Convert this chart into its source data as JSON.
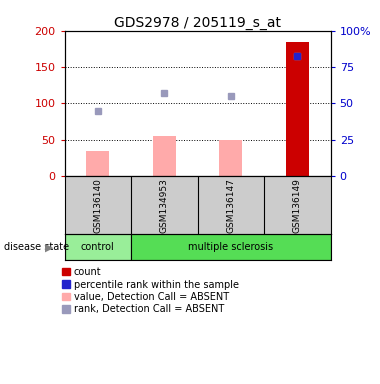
{
  "title": "GDS2978 / 205119_s_at",
  "samples": [
    "GSM136140",
    "GSM134953",
    "GSM136147",
    "GSM136149"
  ],
  "disease_state": [
    "control",
    "multiple sclerosis",
    "multiple sclerosis",
    "multiple sclerosis"
  ],
  "pink_bar_values": [
    35,
    55,
    50,
    185
  ],
  "red_bar_value": 185,
  "red_bar_index": 3,
  "blue_sq_values": [
    90,
    115,
    110,
    165
  ],
  "percentile_rank_value": 165,
  "percentile_rank_index": 3,
  "left_ylim": [
    0,
    200
  ],
  "right_ylim": [
    0,
    100
  ],
  "left_yticks": [
    0,
    50,
    100,
    150,
    200
  ],
  "right_yticks": [
    0,
    25,
    50,
    75,
    100
  ],
  "right_yticklabels": [
    "0",
    "25",
    "50",
    "75",
    "100%"
  ],
  "colors": {
    "red_bar": "#cc0000",
    "pink_bar": "#ffaaaa",
    "blue_sq": "#9999bb",
    "percentile_sq": "#2222cc",
    "control_bg": "#99ee99",
    "ms_bg": "#55dd55",
    "sample_bg": "#cccccc",
    "left_axis": "#cc0000",
    "right_axis": "#0000cc"
  },
  "legend_items": [
    {
      "label": "count",
      "color": "#cc0000"
    },
    {
      "label": "percentile rank within the sample",
      "color": "#2222cc"
    },
    {
      "label": "value, Detection Call = ABSENT",
      "color": "#ffaaaa"
    },
    {
      "label": "rank, Detection Call = ABSENT",
      "color": "#9999bb"
    }
  ],
  "bar_width": 0.35
}
